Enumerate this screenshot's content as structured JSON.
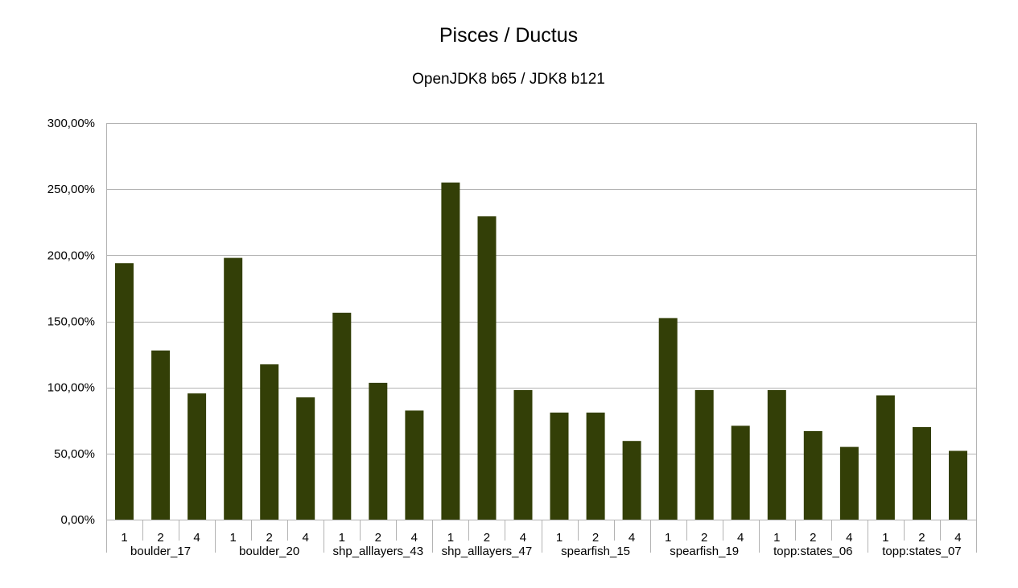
{
  "chart_data": {
    "type": "bar",
    "title": "Pisces / Ductus",
    "subtitle": "OpenJDK8 b65 / JDK8 b121",
    "xlabel": "",
    "ylabel": "",
    "ylim": [
      0,
      300
    ],
    "yticks": [
      0,
      50,
      100,
      150,
      200,
      250,
      300
    ],
    "ytick_labels": [
      "0,00%",
      "50,00%",
      "100,00%",
      "150,00%",
      "200,00%",
      "250,00%",
      "300,00%"
    ],
    "grid": true,
    "legend": "none",
    "bar_color": "#333f07",
    "groups": [
      {
        "label": "boulder_17",
        "categories": [
          "1",
          "2",
          "4"
        ],
        "values": [
          194,
          128,
          95.5
        ]
      },
      {
        "label": "boulder_20",
        "categories": [
          "1",
          "2",
          "4"
        ],
        "values": [
          198,
          117.5,
          92.5
        ]
      },
      {
        "label": "shp_alllayers_43",
        "categories": [
          "1",
          "2",
          "4"
        ],
        "values": [
          156.5,
          103.5,
          82.5
        ]
      },
      {
        "label": "shp_alllayers_47",
        "categories": [
          "1",
          "2",
          "4"
        ],
        "values": [
          255,
          229.5,
          98
        ]
      },
      {
        "label": "spearfish_15",
        "categories": [
          "1",
          "2",
          "4"
        ],
        "values": [
          81,
          81,
          59.5
        ]
      },
      {
        "label": "spearfish_19",
        "categories": [
          "1",
          "2",
          "4"
        ],
        "values": [
          152.5,
          98,
          71
        ]
      },
      {
        "label": "topp:states_06",
        "categories": [
          "1",
          "2",
          "4"
        ],
        "values": [
          98,
          67,
          55
        ]
      },
      {
        "label": "topp:states_07",
        "categories": [
          "1",
          "2",
          "4"
        ],
        "values": [
          94,
          70,
          52
        ]
      }
    ]
  }
}
